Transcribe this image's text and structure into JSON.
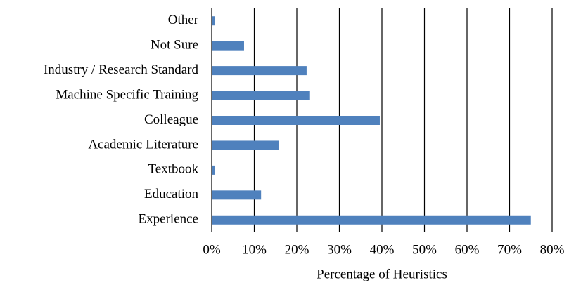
{
  "chart_data": {
    "type": "hbar",
    "x_label": "Percentage of Heuristics",
    "categories": [
      "Other",
      "Not Sure",
      "Industry / Research Standard",
      "Machine Specific Training",
      "Colleague",
      "Academic Literature",
      "Textbook",
      "Education",
      "Experience"
    ],
    "values": [
      0.8,
      7.6,
      22.3,
      23.1,
      39.5,
      15.7,
      0.8,
      11.6,
      75
    ],
    "color": "#4f81bd",
    "xlim": [
      0,
      80
    ],
    "xticks": [
      {
        "value": 0,
        "label": "0%"
      },
      {
        "value": 10,
        "label": "10%"
      },
      {
        "value": 20,
        "label": "20%"
      },
      {
        "value": 30,
        "label": "30%"
      },
      {
        "value": 40,
        "label": "40%"
      },
      {
        "value": 50,
        "label": "50%"
      },
      {
        "value": 60,
        "label": "60%"
      },
      {
        "value": 70,
        "label": "70%"
      },
      {
        "value": 80,
        "label": "80%"
      }
    ],
    "grid": true
  }
}
